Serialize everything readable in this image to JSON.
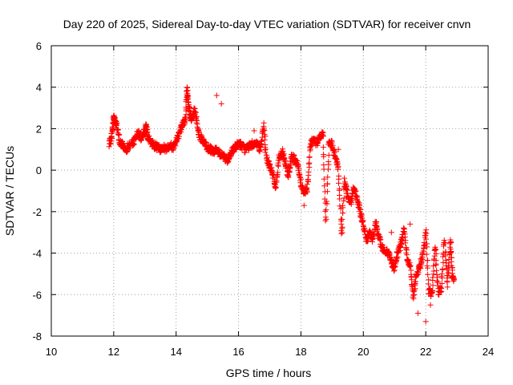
{
  "chart_data": {
    "type": "scatter",
    "title": "Day 220 of 2025, Sidereal Day-to-day VTEC variation (SDTVAR) for receiver cnvn",
    "xlabel": "GPS time / hours",
    "ylabel": "SDTVAR / TECUs",
    "xlim": [
      10,
      24
    ],
    "ylim": [
      -8,
      6
    ],
    "xticks": [
      10,
      12,
      14,
      16,
      18,
      20,
      22,
      24
    ],
    "yticks": [
      -8,
      -6,
      -4,
      -2,
      0,
      2,
      4,
      6
    ],
    "xtick_labels": [
      "10",
      "12",
      "14",
      "16",
      "18",
      "20",
      "22",
      "24"
    ],
    "ytick_labels": [
      "-8",
      "-6",
      "-4",
      "-2",
      "0",
      "2",
      "4",
      "6"
    ],
    "grid": true,
    "marker": "+",
    "color": "#ff0000",
    "series": [
      {
        "name": "cnvn",
        "trace_points": [
          [
            11.85,
            1.2
          ],
          [
            11.95,
            1.7
          ],
          [
            12.0,
            2.6
          ],
          [
            12.05,
            2.4
          ],
          [
            12.1,
            2.1
          ],
          [
            12.2,
            1.3
          ],
          [
            12.3,
            1.2
          ],
          [
            12.4,
            1.0
          ],
          [
            12.5,
            1.2
          ],
          [
            12.6,
            1.3
          ],
          [
            12.7,
            1.6
          ],
          [
            12.8,
            1.8
          ],
          [
            12.9,
            1.5
          ],
          [
            13.0,
            1.9
          ],
          [
            13.05,
            2.1
          ],
          [
            13.1,
            1.6
          ],
          [
            13.2,
            1.3
          ],
          [
            13.3,
            1.2
          ],
          [
            13.4,
            1.1
          ],
          [
            13.5,
            1.0
          ],
          [
            13.6,
            1.1
          ],
          [
            13.7,
            1.0
          ],
          [
            13.8,
            1.2
          ],
          [
            13.9,
            1.1
          ],
          [
            14.0,
            1.4
          ],
          [
            14.1,
            1.8
          ],
          [
            14.2,
            2.2
          ],
          [
            14.3,
            2.4
          ],
          [
            14.35,
            3.9
          ],
          [
            14.4,
            3.2
          ],
          [
            14.45,
            2.6
          ],
          [
            14.5,
            2.4
          ],
          [
            14.6,
            2.9
          ],
          [
            14.7,
            2.0
          ],
          [
            14.8,
            1.5
          ],
          [
            14.9,
            1.3
          ],
          [
            15.0,
            1.1
          ],
          [
            15.1,
            1.0
          ],
          [
            15.2,
            0.9
          ],
          [
            15.3,
            1.0
          ],
          [
            15.4,
            0.8
          ],
          [
            15.5,
            0.7
          ],
          [
            15.6,
            0.5
          ],
          [
            15.7,
            0.6
          ],
          [
            15.8,
            0.9
          ],
          [
            15.9,
            1.1
          ],
          [
            16.0,
            1.3
          ],
          [
            16.1,
            1.2
          ],
          [
            16.2,
            1.0
          ],
          [
            16.3,
            1.1
          ],
          [
            16.4,
            1.2
          ],
          [
            16.5,
            1.3
          ],
          [
            16.6,
            1.2
          ],
          [
            16.7,
            1.0
          ],
          [
            16.8,
            2.2
          ],
          [
            16.9,
            0.5
          ],
          [
            17.0,
            0.2
          ],
          [
            17.1,
            -0.2
          ],
          [
            17.2,
            -0.8
          ],
          [
            17.3,
            0.6
          ],
          [
            17.4,
            0.9
          ],
          [
            17.5,
            0.3
          ],
          [
            17.6,
            -0.3
          ],
          [
            17.7,
            0.7
          ],
          [
            17.8,
            0.5
          ],
          [
            17.9,
            0.2
          ],
          [
            18.0,
            -0.6
          ],
          [
            18.1,
            -1.1
          ],
          [
            18.2,
            -0.9
          ],
          [
            18.3,
            1.2
          ],
          [
            18.4,
            1.5
          ],
          [
            18.5,
            1.3
          ],
          [
            18.6,
            1.6
          ],
          [
            18.7,
            1.8
          ],
          [
            18.8,
            -2.5
          ],
          [
            18.9,
            1.4
          ],
          [
            19.0,
            1.2
          ],
          [
            19.1,
            0.6
          ],
          [
            19.2,
            0.1
          ],
          [
            19.3,
            -3.2
          ],
          [
            19.4,
            -0.5
          ],
          [
            19.5,
            -1.2
          ],
          [
            19.6,
            -1.6
          ],
          [
            19.7,
            -0.8
          ],
          [
            19.8,
            -1.4
          ],
          [
            19.9,
            -2.0
          ],
          [
            20.0,
            -2.6
          ],
          [
            20.1,
            -3.4
          ],
          [
            20.2,
            -3.0
          ],
          [
            20.3,
            -3.3
          ],
          [
            20.4,
            -2.5
          ],
          [
            20.5,
            -3.3
          ],
          [
            20.6,
            -3.7
          ],
          [
            20.7,
            -3.9
          ],
          [
            20.8,
            -4.0
          ],
          [
            20.9,
            -4.4
          ],
          [
            21.0,
            -4.8
          ],
          [
            21.1,
            -4.0
          ],
          [
            21.2,
            -3.6
          ],
          [
            21.3,
            -2.8
          ],
          [
            21.4,
            -4.2
          ],
          [
            21.5,
            -4.6
          ],
          [
            21.6,
            -6.1
          ],
          [
            21.7,
            -5.0
          ],
          [
            21.8,
            -4.7
          ],
          [
            21.9,
            -4.2
          ],
          [
            22.0,
            -3.0
          ],
          [
            22.1,
            -5.8
          ],
          [
            22.2,
            -6.0
          ],
          [
            22.3,
            -3.6
          ],
          [
            22.4,
            -5.9
          ],
          [
            22.5,
            -5.7
          ],
          [
            22.6,
            -3.3
          ],
          [
            22.7,
            -5.5
          ],
          [
            22.8,
            -3.4
          ],
          [
            22.85,
            -5.0
          ],
          [
            22.9,
            -5.3
          ]
        ],
        "outlier_points": [
          [
            15.3,
            3.6
          ],
          [
            15.45,
            3.2
          ],
          [
            18.1,
            -1.7
          ],
          [
            19.2,
            1.0
          ],
          [
            20.9,
            -3.0
          ],
          [
            21.5,
            -2.6
          ],
          [
            22.0,
            -7.3
          ],
          [
            21.75,
            -6.9
          ],
          [
            22.15,
            -6.5
          ],
          [
            16.5,
            1.9
          ]
        ]
      }
    ]
  }
}
